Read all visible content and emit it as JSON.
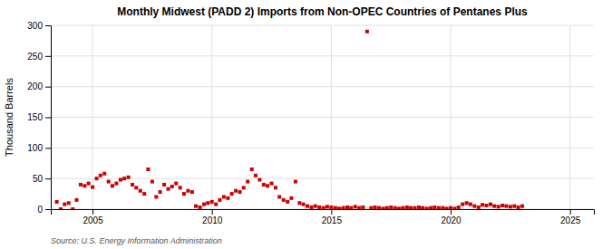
{
  "chart_data": {
    "type": "scatter",
    "title": "Monthly Midwest (PADD 2) Imports from Non-OPEC Countries of Pentanes Plus",
    "ylabel": "Thousand Barrels",
    "annotations": [
      "Source: U.S. Energy Information Administration"
    ],
    "color": "#cc0000",
    "marker": "square",
    "grid": true,
    "xlim": [
      2003.25,
      2026.0
    ],
    "ylim": [
      0,
      300
    ],
    "xticks": [
      2005,
      2010,
      2015,
      2020,
      2025
    ],
    "yticks": [
      0,
      50,
      100,
      150,
      200,
      250,
      300
    ],
    "x": [
      2003.5,
      2003.67,
      2003.83,
      2004.0,
      2004.17,
      2004.33,
      2004.5,
      2004.67,
      2004.83,
      2005.0,
      2005.17,
      2005.33,
      2005.5,
      2005.67,
      2005.83,
      2006.0,
      2006.17,
      2006.33,
      2006.5,
      2006.67,
      2006.83,
      2007.0,
      2007.17,
      2007.33,
      2007.5,
      2007.67,
      2007.83,
      2008.0,
      2008.17,
      2008.33,
      2008.5,
      2008.67,
      2008.83,
      2009.0,
      2009.17,
      2009.33,
      2009.5,
      2009.67,
      2009.83,
      2010.0,
      2010.17,
      2010.33,
      2010.5,
      2010.67,
      2010.83,
      2011.0,
      2011.17,
      2011.33,
      2011.5,
      2011.67,
      2011.83,
      2012.0,
      2012.17,
      2012.33,
      2012.5,
      2012.67,
      2012.83,
      2013.0,
      2013.17,
      2013.33,
      2013.5,
      2013.67,
      2013.83,
      2014.0,
      2014.17,
      2014.33,
      2014.5,
      2014.67,
      2014.83,
      2015.0,
      2015.17,
      2015.33,
      2015.5,
      2015.67,
      2015.83,
      2016.0,
      2016.17,
      2016.33,
      2016.5,
      2016.67,
      2016.83,
      2017.0,
      2017.17,
      2017.33,
      2017.5,
      2017.67,
      2017.83,
      2018.0,
      2018.17,
      2018.33,
      2018.5,
      2018.67,
      2018.83,
      2019.0,
      2019.17,
      2019.33,
      2019.5,
      2019.67,
      2019.83,
      2020.0,
      2020.17,
      2020.33,
      2020.5,
      2020.67,
      2020.83,
      2021.0,
      2021.17,
      2021.33,
      2021.5,
      2021.67,
      2021.83,
      2022.0,
      2022.17,
      2022.33,
      2022.5,
      2022.67,
      2022.83,
      2023.0
    ],
    "values": [
      12,
      0,
      8,
      10,
      0,
      15,
      40,
      38,
      42,
      36,
      50,
      55,
      58,
      45,
      38,
      42,
      48,
      50,
      52,
      40,
      35,
      30,
      25,
      65,
      45,
      20,
      28,
      40,
      33,
      37,
      42,
      35,
      25,
      30,
      28,
      5,
      3,
      8,
      10,
      12,
      8,
      15,
      20,
      18,
      25,
      30,
      28,
      35,
      45,
      65,
      55,
      48,
      40,
      38,
      42,
      35,
      20,
      15,
      12,
      18,
      45,
      10,
      8,
      5,
      3,
      5,
      3,
      2,
      4,
      3,
      2,
      1,
      2,
      3,
      2,
      4,
      2,
      3,
      290,
      2,
      3,
      2,
      1,
      2,
      3,
      2,
      1,
      2,
      3,
      2,
      2,
      3,
      2,
      1,
      2,
      3,
      2,
      2,
      1,
      2,
      1,
      3,
      8,
      10,
      8,
      5,
      3,
      7,
      6,
      8,
      5,
      4,
      6,
      5,
      4,
      5,
      3,
      5
    ]
  }
}
